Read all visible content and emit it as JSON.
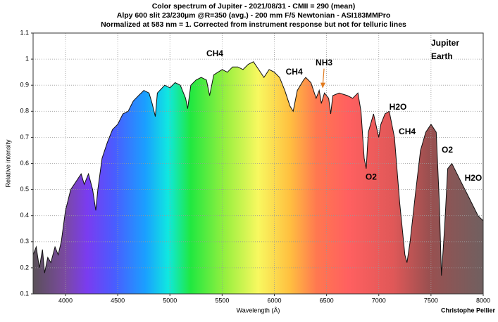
{
  "chart_data": {
    "type": "line",
    "title": [
      "Color spectrum of Jupiter - 2021/08/31 - CMII = 290 (mean)",
      "Alpy 600 slit 23/230µm @R=350 (avg.) - 200 mm F/5 Newtonian - ASI183MMPro",
      "Normalized at 583 nm = 1. Corrected from instrument response but not for telluric lines"
    ],
    "xlabel": "Wavelength (Å)",
    "ylabel": "Relative intensity",
    "credit": "Christophe Pellier",
    "xlim": [
      3690,
      8000
    ],
    "ylim": [
      0.1,
      1.1
    ],
    "xticks": [
      4000,
      4500,
      5000,
      5500,
      6000,
      6500,
      7000,
      7500,
      8000
    ],
    "yticks": [
      0.1,
      0.2,
      0.3,
      0.4,
      0.5,
      0.6,
      0.7,
      0.8,
      0.9,
      1,
      1.1
    ],
    "grid": true,
    "color": "#111111",
    "legend": [
      {
        "name": "Jupiter",
        "color": "#e07a1f"
      },
      {
        "name": "Earth",
        "color": "#1c1ca8"
      }
    ],
    "annotations": [
      {
        "text": "CH4",
        "x": 5430,
        "y": 1.02,
        "color": "#e07a1f"
      },
      {
        "text": "CH4",
        "x": 6190,
        "y": 0.95,
        "color": "#e07a1f"
      },
      {
        "text": "NH3",
        "x": 6476,
        "y": 0.985,
        "color": "#e07a1f",
        "arrow": true
      },
      {
        "text": "H2O",
        "x": 7184,
        "y": 0.815,
        "color": "#1c1ca8"
      },
      {
        "text": "CH4",
        "x": 7272,
        "y": 0.72,
        "color": "#e07a1f"
      },
      {
        "text": "O2",
        "x": 6927,
        "y": 0.547,
        "color": "#1c1ca8"
      },
      {
        "text": "O2",
        "x": 7656,
        "y": 0.65,
        "color": "#1c1ca8"
      },
      {
        "text": "H2O",
        "x": 7905,
        "y": 0.542,
        "color": "#1c1ca8"
      }
    ],
    "x": [
      3690,
      3720,
      3750,
      3780,
      3800,
      3830,
      3860,
      3900,
      3930,
      3960,
      4000,
      4050,
      4100,
      4150,
      4180,
      4220,
      4260,
      4290,
      4310,
      4350,
      4400,
      4450,
      4500,
      4550,
      4600,
      4650,
      4700,
      4750,
      4800,
      4830,
      4860,
      4880,
      4950,
      5000,
      5050,
      5100,
      5150,
      5170,
      5200,
      5250,
      5300,
      5350,
      5380,
      5420,
      5500,
      5550,
      5600,
      5650,
      5700,
      5750,
      5800,
      5850,
      5900,
      5950,
      6000,
      6050,
      6100,
      6150,
      6180,
      6220,
      6280,
      6300,
      6350,
      6400,
      6430,
      6450,
      6480,
      6520,
      6540,
      6560,
      6620,
      6700,
      6750,
      6800,
      6830,
      6860,
      6880,
      6900,
      6950,
      7000,
      7020,
      7060,
      7100,
      7150,
      7200,
      7250,
      7270,
      7300,
      7350,
      7400,
      7450,
      7500,
      7550,
      7580,
      7600,
      7630,
      7660,
      7700,
      7750,
      7800,
      7850,
      7900,
      7950,
      8000
    ],
    "values": [
      0.25,
      0.28,
      0.2,
      0.27,
      0.18,
      0.24,
      0.22,
      0.28,
      0.25,
      0.3,
      0.42,
      0.5,
      0.53,
      0.56,
      0.52,
      0.56,
      0.5,
      0.42,
      0.5,
      0.62,
      0.68,
      0.73,
      0.75,
      0.79,
      0.8,
      0.84,
      0.86,
      0.88,
      0.87,
      0.83,
      0.78,
      0.87,
      0.9,
      0.89,
      0.91,
      0.9,
      0.85,
      0.81,
      0.9,
      0.92,
      0.93,
      0.92,
      0.86,
      0.94,
      0.96,
      0.95,
      0.97,
      0.97,
      0.96,
      0.98,
      0.99,
      0.96,
      0.93,
      0.96,
      0.95,
      0.93,
      0.88,
      0.82,
      0.8,
      0.88,
      0.92,
      0.93,
      0.91,
      0.85,
      0.88,
      0.83,
      0.87,
      0.85,
      0.79,
      0.86,
      0.87,
      0.86,
      0.85,
      0.87,
      0.8,
      0.62,
      0.58,
      0.72,
      0.79,
      0.7,
      0.75,
      0.79,
      0.8,
      0.7,
      0.45,
      0.25,
      0.22,
      0.3,
      0.48,
      0.65,
      0.72,
      0.75,
      0.72,
      0.45,
      0.17,
      0.35,
      0.58,
      0.6,
      0.56,
      0.52,
      0.48,
      0.44,
      0.4,
      0.38
    ]
  }
}
